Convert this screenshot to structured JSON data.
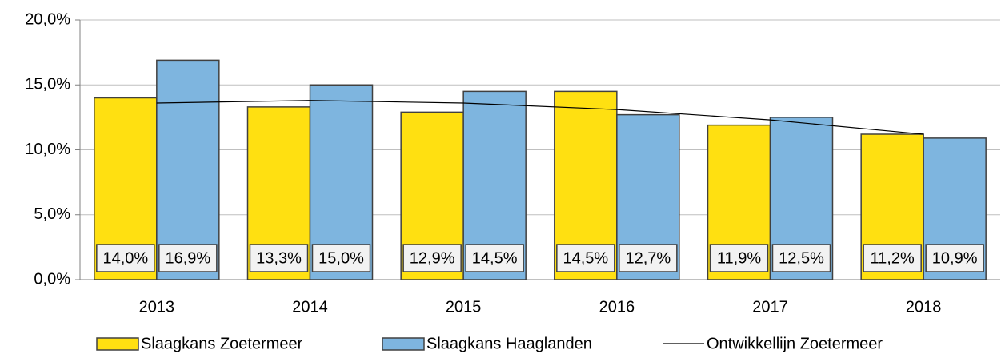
{
  "chart_data": {
    "type": "bar",
    "categories": [
      "2013",
      "2014",
      "2015",
      "2016",
      "2017",
      "2018"
    ],
    "series": [
      {
        "name": "Slaagkans Zoetermeer",
        "color": "#ffe011",
        "values": [
          14.0,
          13.3,
          12.9,
          14.5,
          11.9,
          11.2
        ],
        "value_labels": [
          "14,0%",
          "13,3%",
          "12,9%",
          "14,5%",
          "11,9%",
          "11,2%"
        ]
      },
      {
        "name": "Slaagkans Haaglanden",
        "color": "#7eb5df",
        "values": [
          16.9,
          15.0,
          14.5,
          12.7,
          12.5,
          10.9
        ],
        "value_labels": [
          "16,9%",
          "15,0%",
          "14,5%",
          "12,7%",
          "12,5%",
          "10,9%"
        ]
      },
      {
        "name": "Ontwikkellijn Zoetermeer",
        "type": "line",
        "color": "#000000",
        "values": [
          13.6,
          13.8,
          13.6,
          13.1,
          12.3,
          11.2
        ]
      }
    ],
    "ylim": [
      0,
      20
    ],
    "yticks": [
      {
        "value": 0,
        "label": "0,0%"
      },
      {
        "value": 5,
        "label": "5,0%"
      },
      {
        "value": 10,
        "label": "10,0%"
      },
      {
        "value": 15,
        "label": "15,0%"
      },
      {
        "value": 20,
        "label": "20,0%"
      }
    ],
    "grid": true
  }
}
